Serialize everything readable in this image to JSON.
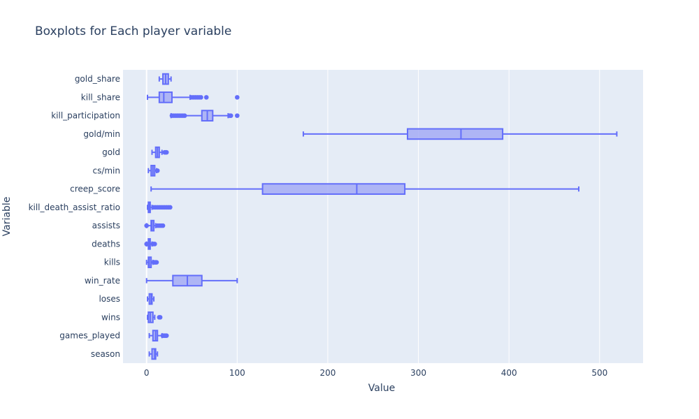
{
  "chart_data": {
    "type": "box",
    "orientation": "horizontal",
    "title": "Boxplots for Each player variable",
    "xlabel": "Value",
    "ylabel": "Variable",
    "xlim": [
      -26,
      548
    ],
    "xticks": [
      0,
      100,
      200,
      300,
      400,
      500
    ],
    "grid": true,
    "colors": {
      "plot_bg": "#e5ecf6",
      "box_line": "#636efa",
      "box_fill": "#a5abf5",
      "grid": "#ffffff",
      "text": "#2a3f5f"
    },
    "categories": [
      "season",
      "games_played",
      "wins",
      "loses",
      "win_rate",
      "kills",
      "deaths",
      "assists",
      "kill_death_assist_ratio",
      "creep_score",
      "cs/min",
      "gold",
      "gold/min",
      "kill_participation",
      "kill_share",
      "gold_share"
    ],
    "boxes": [
      {
        "name": "season",
        "min": 3,
        "q1": 6,
        "median": 9,
        "q3": 10,
        "max": 12,
        "outliers": []
      },
      {
        "name": "games_played",
        "min": 3,
        "q1": 7,
        "median": 10,
        "q3": 12,
        "max": 17,
        "outliers": [
          18,
          19,
          20,
          21,
          22
        ]
      },
      {
        "name": "wins",
        "min": 1,
        "q1": 2,
        "median": 4,
        "q3": 7,
        "max": 9,
        "outliers": [
          14,
          15
        ]
      },
      {
        "name": "loses",
        "min": 1,
        "q1": 3,
        "median": 5,
        "q3": 6,
        "max": 8,
        "outliers": []
      },
      {
        "name": "win_rate",
        "min": 0,
        "q1": 29,
        "median": 45,
        "q3": 61,
        "max": 100,
        "outliers": []
      },
      {
        "name": "kills",
        "min": 0,
        "q1": 2,
        "median": 3,
        "q3": 5,
        "max": 7,
        "outliers": [
          8,
          9,
          10,
          11
        ]
      },
      {
        "name": "deaths",
        "min": 0,
        "q1": 2,
        "median": 3,
        "q3": 4,
        "max": 6,
        "outliers": [
          0,
          7,
          8,
          9
        ]
      },
      {
        "name": "assists",
        "min": 0,
        "q1": 5,
        "median": 6,
        "q3": 8,
        "max": 10,
        "outliers": [
          0,
          12,
          14,
          16,
          18
        ]
      },
      {
        "name": "kill_death_assist_ratio",
        "min": 1,
        "q1": 2,
        "median": 3,
        "q3": 4,
        "max": 6,
        "outliers": [
          8,
          10,
          12,
          14,
          16,
          18,
          20,
          22,
          24,
          26
        ]
      },
      {
        "name": "creep_score",
        "min": 5,
        "q1": 128,
        "median": 232,
        "q3": 285,
        "max": 477,
        "outliers": []
      },
      {
        "name": "cs/min",
        "min": 2,
        "q1": 5,
        "median": 7,
        "q3": 9,
        "max": 11,
        "outliers": [
          12
        ]
      },
      {
        "name": "gold",
        "min": 6,
        "q1": 10,
        "median": 12,
        "q3": 14,
        "max": 17,
        "outliers": [
          20,
          21,
          22
        ]
      },
      {
        "name": "gold/min",
        "min": 173,
        "q1": 288,
        "median": 347,
        "q3": 393,
        "max": 519,
        "outliers": []
      },
      {
        "name": "kill_participation",
        "min": 27,
        "q1": 61,
        "median": 67,
        "q3": 73,
        "max": 90,
        "outliers": [
          28,
          30,
          32,
          34,
          36,
          38,
          40,
          42,
          92,
          93,
          100
        ]
      },
      {
        "name": "kill_share",
        "min": 1,
        "q1": 14,
        "median": 19,
        "q3": 28,
        "max": 48,
        "outliers": [
          50,
          52,
          54,
          56,
          58,
          60,
          66,
          100
        ]
      },
      {
        "name": "gold_share",
        "min": 14,
        "q1": 18,
        "median": 21,
        "q3": 24,
        "max": 27,
        "outliers": []
      }
    ]
  }
}
